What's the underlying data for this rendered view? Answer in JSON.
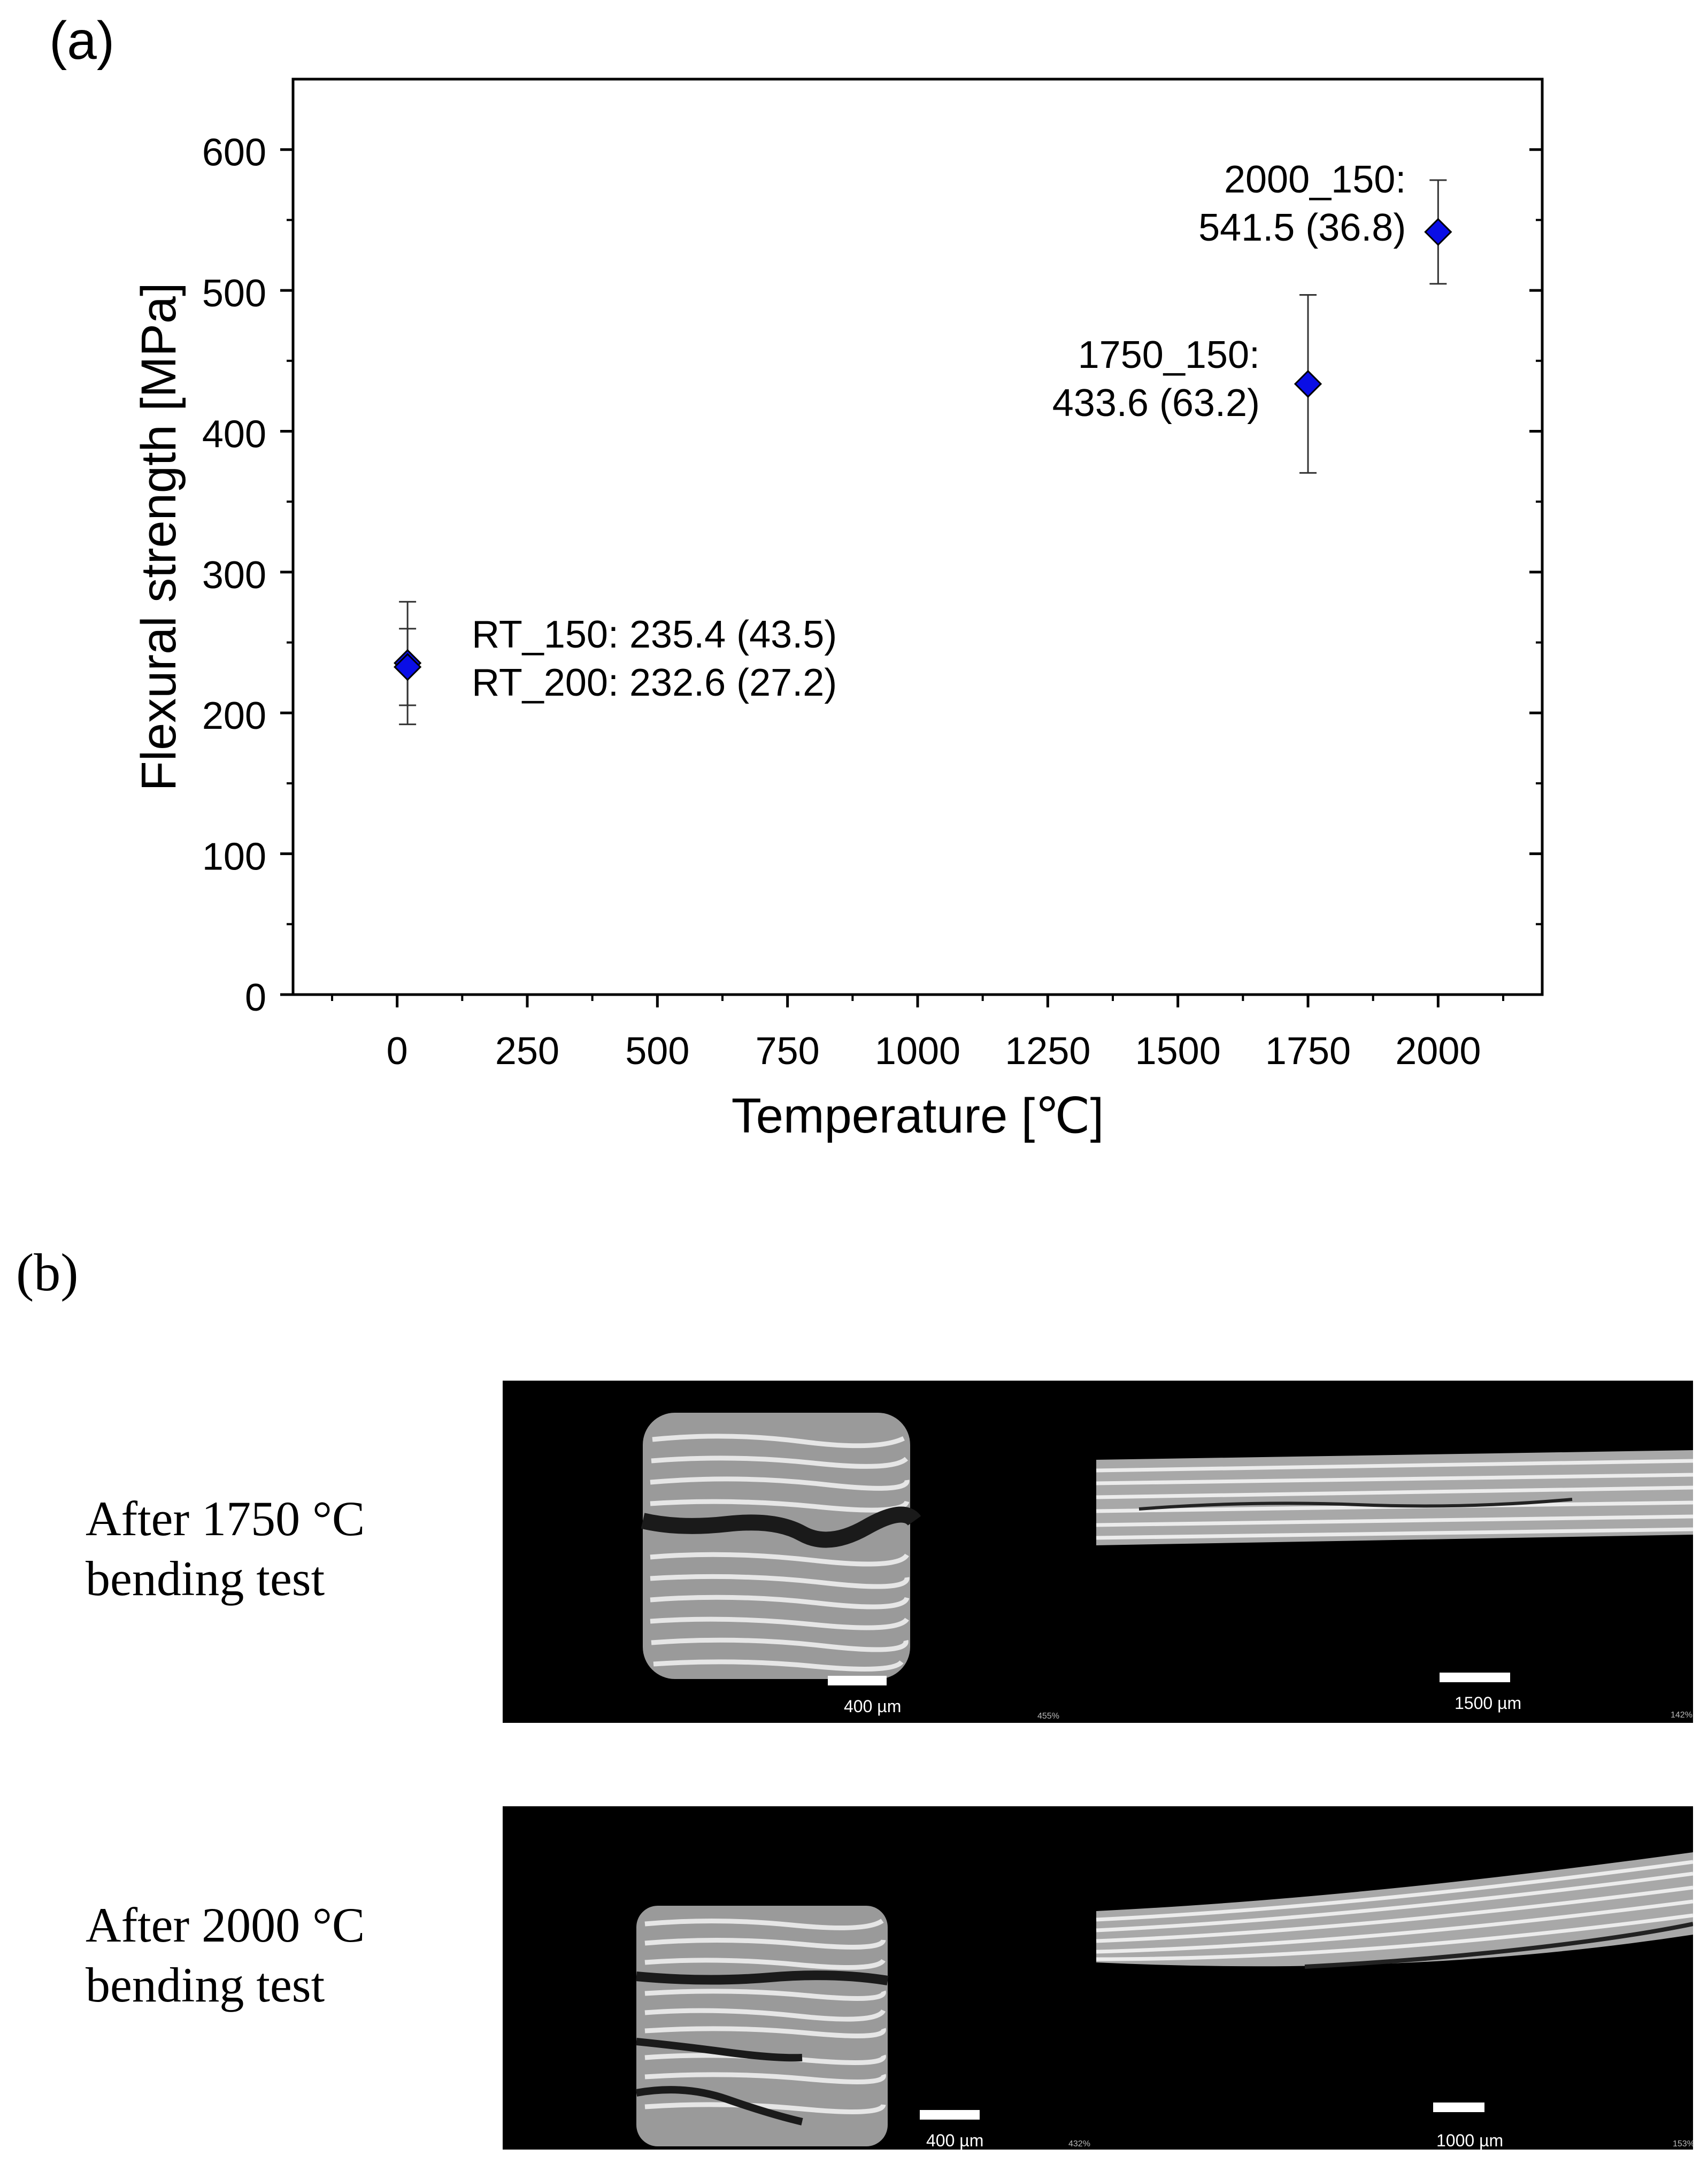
{
  "panel_a_label": "(a)",
  "panel_b_label": "(b)",
  "chart_data": {
    "type": "scatter",
    "xlabel": "Temperature [℃]",
    "ylabel": "Flexural strength [MPa]",
    "xlim": [
      -200,
      2200
    ],
    "ylim": [
      0,
      650
    ],
    "xticks": [
      0,
      250,
      500,
      750,
      1000,
      1250,
      1500,
      1750,
      2000
    ],
    "yticks": [
      0,
      100,
      200,
      300,
      400,
      500,
      600
    ],
    "grid": false,
    "marker": "diamond",
    "marker_color": "#0a0ee6",
    "points": [
      {
        "x": 20,
        "y": 235.4,
        "err": 43.5
      },
      {
        "x": 20,
        "y": 232.6,
        "err": 27.2
      },
      {
        "x": 1750,
        "y": 433.6,
        "err": 63.2
      },
      {
        "x": 2000,
        "y": 541.5,
        "err": 36.8
      }
    ],
    "annotations": [
      {
        "lines": [
          "RT_150: 235.4 (43.5)",
          "RT_200: 232.6 (27.2)"
        ]
      },
      {
        "lines": [
          "1750_150:",
          "433.6 (63.2)"
        ]
      },
      {
        "lines": [
          "2000_150:",
          "541.5 (36.8)"
        ]
      }
    ]
  },
  "micrographs": {
    "rows": [
      {
        "label_line1": "After 1750 °C",
        "label_line2": "bending test",
        "left_scale": "400 µm",
        "right_scale": "1500 µm",
        "left_zoom": "455%",
        "right_zoom": "142%"
      },
      {
        "label_line1": "After 2000 °C",
        "label_line2": "bending test",
        "left_scale": "400 µm",
        "right_scale": "1000 µm",
        "left_zoom": "432%",
        "right_zoom": "153%"
      }
    ]
  }
}
